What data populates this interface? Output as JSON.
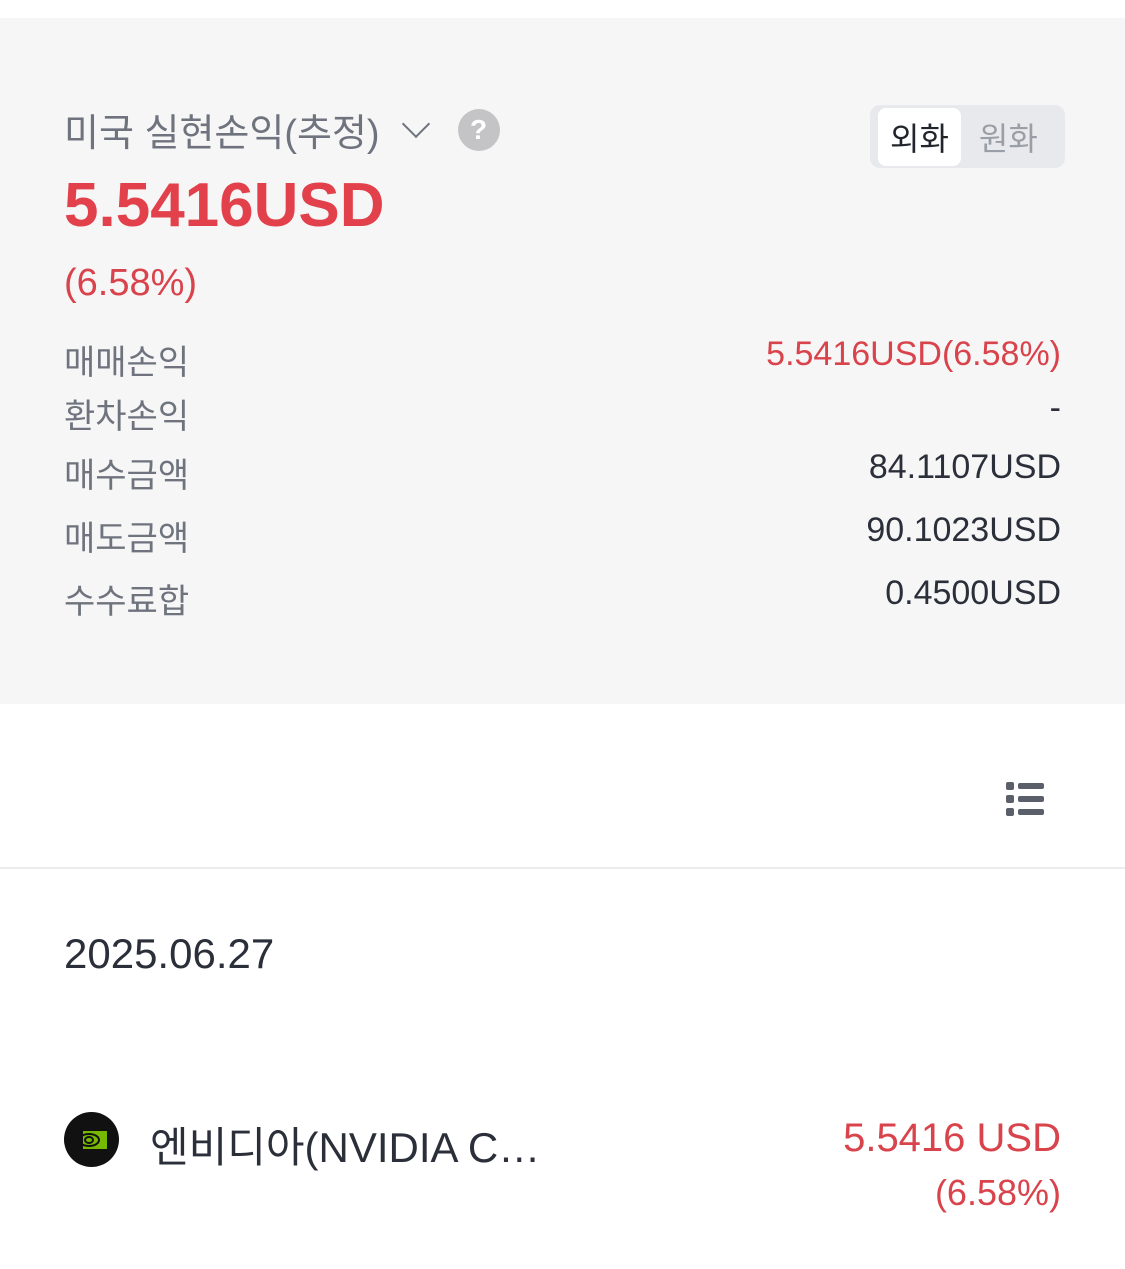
{
  "summary": {
    "title": "미국 실현손익(추정)",
    "currency_toggle": {
      "options": [
        "외화",
        "원화"
      ],
      "selected": "외화"
    },
    "total_value": "5.5416USD",
    "total_percent": "(6.58%)",
    "rows": [
      {
        "label": "매매손익",
        "value": "5.5416USD(6.58%)",
        "highlight": true
      },
      {
        "label": "환차손익",
        "value": "-",
        "highlight": false
      },
      {
        "label": "매수금액",
        "value": "84.1107USD",
        "highlight": false
      },
      {
        "label": "매도금액",
        "value": "90.1023USD",
        "highlight": false
      },
      {
        "label": "수수료합",
        "value": "0.4500USD",
        "highlight": false
      }
    ]
  },
  "list": {
    "date": "2025.06.27",
    "items": [
      {
        "name": "엔비디아(NVIDIA C…",
        "amount": "5.5416 USD",
        "percent": "(6.58%)",
        "icon": "nvidia-logo"
      }
    ]
  },
  "colors": {
    "profit": "#d9434b",
    "panel_bg": "#f6f6f7",
    "logo_green": "#76b900"
  }
}
